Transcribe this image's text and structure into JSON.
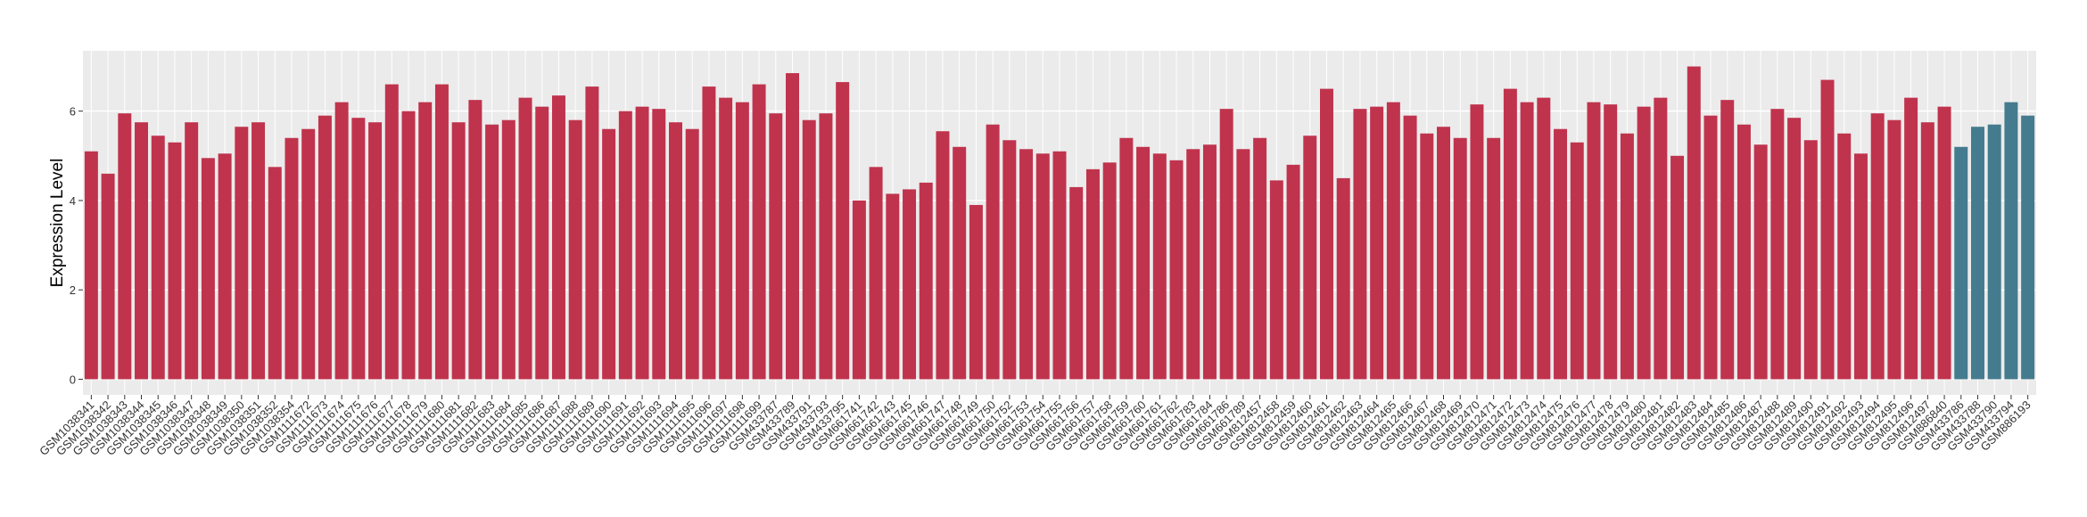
{
  "chart_data": {
    "type": "bar",
    "y_label": "Expression Level",
    "categories": [
      "GSM1038341",
      "GSM1038342",
      "GSM1038343",
      "GSM1038344",
      "GSM1038345",
      "GSM1038346",
      "GSM1038347",
      "GSM1038348",
      "GSM1038349",
      "GSM1038350",
      "GSM1038351",
      "GSM1038352",
      "GSM1038354",
      "GSM1111672",
      "GSM1111673",
      "GSM1111674",
      "GSM1111675",
      "GSM1111676",
      "GSM1111677",
      "GSM1111678",
      "GSM1111679",
      "GSM1111680",
      "GSM1111681",
      "GSM1111682",
      "GSM1111683",
      "GSM1111684",
      "GSM1111685",
      "GSM1111686",
      "GSM1111687",
      "GSM1111688",
      "GSM1111689",
      "GSM1111690",
      "GSM1111691",
      "GSM1111692",
      "GSM1111693",
      "GSM1111694",
      "GSM1111695",
      "GSM1111696",
      "GSM1111697",
      "GSM1111698",
      "GSM1111699",
      "GSM433787",
      "GSM433789",
      "GSM433791",
      "GSM433793",
      "GSM433795",
      "GSM661741",
      "GSM661742",
      "GSM661743",
      "GSM661745",
      "GSM661746",
      "GSM661747",
      "GSM661748",
      "GSM661749",
      "GSM661750",
      "GSM661752",
      "GSM661753",
      "GSM661754",
      "GSM661755",
      "GSM661756",
      "GSM661757",
      "GSM661758",
      "GSM661759",
      "GSM661760",
      "GSM661761",
      "GSM661762",
      "GSM661783",
      "GSM661784",
      "GSM661786",
      "GSM661789",
      "GSM812457",
      "GSM812458",
      "GSM812459",
      "GSM812460",
      "GSM812461",
      "GSM812462",
      "GSM812463",
      "GSM812464",
      "GSM812465",
      "GSM812466",
      "GSM812467",
      "GSM812468",
      "GSM812469",
      "GSM812470",
      "GSM812471",
      "GSM812472",
      "GSM812473",
      "GSM812474",
      "GSM812475",
      "GSM812476",
      "GSM812477",
      "GSM812478",
      "GSM812479",
      "GSM812480",
      "GSM812481",
      "GSM812482",
      "GSM812483",
      "GSM812484",
      "GSM812485",
      "GSM812486",
      "GSM812487",
      "GSM812488",
      "GSM812489",
      "GSM812490",
      "GSM812491",
      "GSM812492",
      "GSM812493",
      "GSM812494",
      "GSM812495",
      "GSM812496",
      "GSM812497",
      "GSM886840",
      "GSM433786",
      "GSM433788",
      "GSM433790",
      "GSM433794",
      "GSM886193"
    ],
    "values": [
      5.1,
      4.6,
      5.95,
      5.75,
      5.45,
      5.3,
      5.75,
      4.95,
      5.05,
      5.65,
      5.75,
      4.75,
      5.4,
      5.6,
      5.9,
      6.2,
      5.85,
      5.75,
      6.6,
      6.0,
      6.2,
      6.6,
      5.75,
      6.25,
      5.7,
      5.8,
      6.3,
      6.1,
      6.35,
      5.8,
      6.55,
      5.6,
      6.0,
      6.1,
      6.05,
      5.75,
      5.6,
      6.55,
      6.3,
      6.2,
      6.6,
      5.95,
      6.85,
      5.8,
      5.95,
      6.65,
      4.0,
      4.75,
      4.15,
      4.25,
      4.4,
      5.55,
      5.2,
      3.9,
      5.7,
      5.35,
      5.15,
      5.05,
      5.1,
      4.3,
      4.7,
      4.85,
      5.4,
      5.2,
      5.05,
      4.9,
      5.15,
      5.25,
      6.05,
      5.15,
      5.4,
      4.45,
      4.8,
      5.45,
      6.5,
      4.5,
      6.05,
      6.1,
      6.2,
      5.9,
      5.5,
      5.65,
      5.4,
      6.15,
      5.4,
      6.5,
      6.2,
      6.3,
      5.6,
      5.3,
      6.2,
      6.15,
      5.5,
      6.1,
      6.3,
      5.0,
      7.0,
      5.9,
      6.25,
      5.7,
      5.25,
      6.05,
      5.85,
      5.35,
      6.7,
      5.5,
      5.05,
      5.95,
      5.8,
      6.3,
      5.75,
      6.1,
      5.2,
      5.65,
      5.7,
      6.2,
      5.9
    ],
    "colors": [
      "#c0334d",
      "#c0334d",
      "#c0334d",
      "#c0334d",
      "#c0334d",
      "#c0334d",
      "#c0334d",
      "#c0334d",
      "#c0334d",
      "#c0334d",
      "#c0334d",
      "#c0334d",
      "#c0334d",
      "#c0334d",
      "#c0334d",
      "#c0334d",
      "#c0334d",
      "#c0334d",
      "#c0334d",
      "#c0334d",
      "#c0334d",
      "#c0334d",
      "#c0334d",
      "#c0334d",
      "#c0334d",
      "#c0334d",
      "#c0334d",
      "#c0334d",
      "#c0334d",
      "#c0334d",
      "#c0334d",
      "#c0334d",
      "#c0334d",
      "#c0334d",
      "#c0334d",
      "#c0334d",
      "#c0334d",
      "#c0334d",
      "#c0334d",
      "#c0334d",
      "#c0334d",
      "#c0334d",
      "#c0334d",
      "#c0334d",
      "#c0334d",
      "#c0334d",
      "#c0334d",
      "#c0334d",
      "#c0334d",
      "#c0334d",
      "#c0334d",
      "#c0334d",
      "#c0334d",
      "#c0334d",
      "#c0334d",
      "#c0334d",
      "#c0334d",
      "#c0334d",
      "#c0334d",
      "#c0334d",
      "#c0334d",
      "#c0334d",
      "#c0334d",
      "#c0334d",
      "#c0334d",
      "#c0334d",
      "#c0334d",
      "#c0334d",
      "#c0334d",
      "#c0334d",
      "#c0334d",
      "#c0334d",
      "#c0334d",
      "#c0334d",
      "#c0334d",
      "#c0334d",
      "#c0334d",
      "#c0334d",
      "#c0334d",
      "#c0334d",
      "#c0334d",
      "#c0334d",
      "#c0334d",
      "#c0334d",
      "#c0334d",
      "#c0334d",
      "#c0334d",
      "#c0334d",
      "#c0334d",
      "#c0334d",
      "#c0334d",
      "#c0334d",
      "#c0334d",
      "#c0334d",
      "#c0334d",
      "#c0334d",
      "#c0334d",
      "#c0334d",
      "#c0334d",
      "#c0334d",
      "#c0334d",
      "#c0334d",
      "#c0334d",
      "#c0334d",
      "#c0334d",
      "#c0334d",
      "#c0334d",
      "#c0334d",
      "#c0334d",
      "#c0334d",
      "#c0334d",
      "#c0334d",
      "#457b8e",
      "#457b8e",
      "#457b8e",
      "#457b8e",
      "#457b8e"
    ],
    "ylim": [
      -0.35,
      7.35
    ],
    "yticks": [
      0,
      2,
      4,
      6
    ],
    "grid": true,
    "background": "#ebebeb"
  }
}
